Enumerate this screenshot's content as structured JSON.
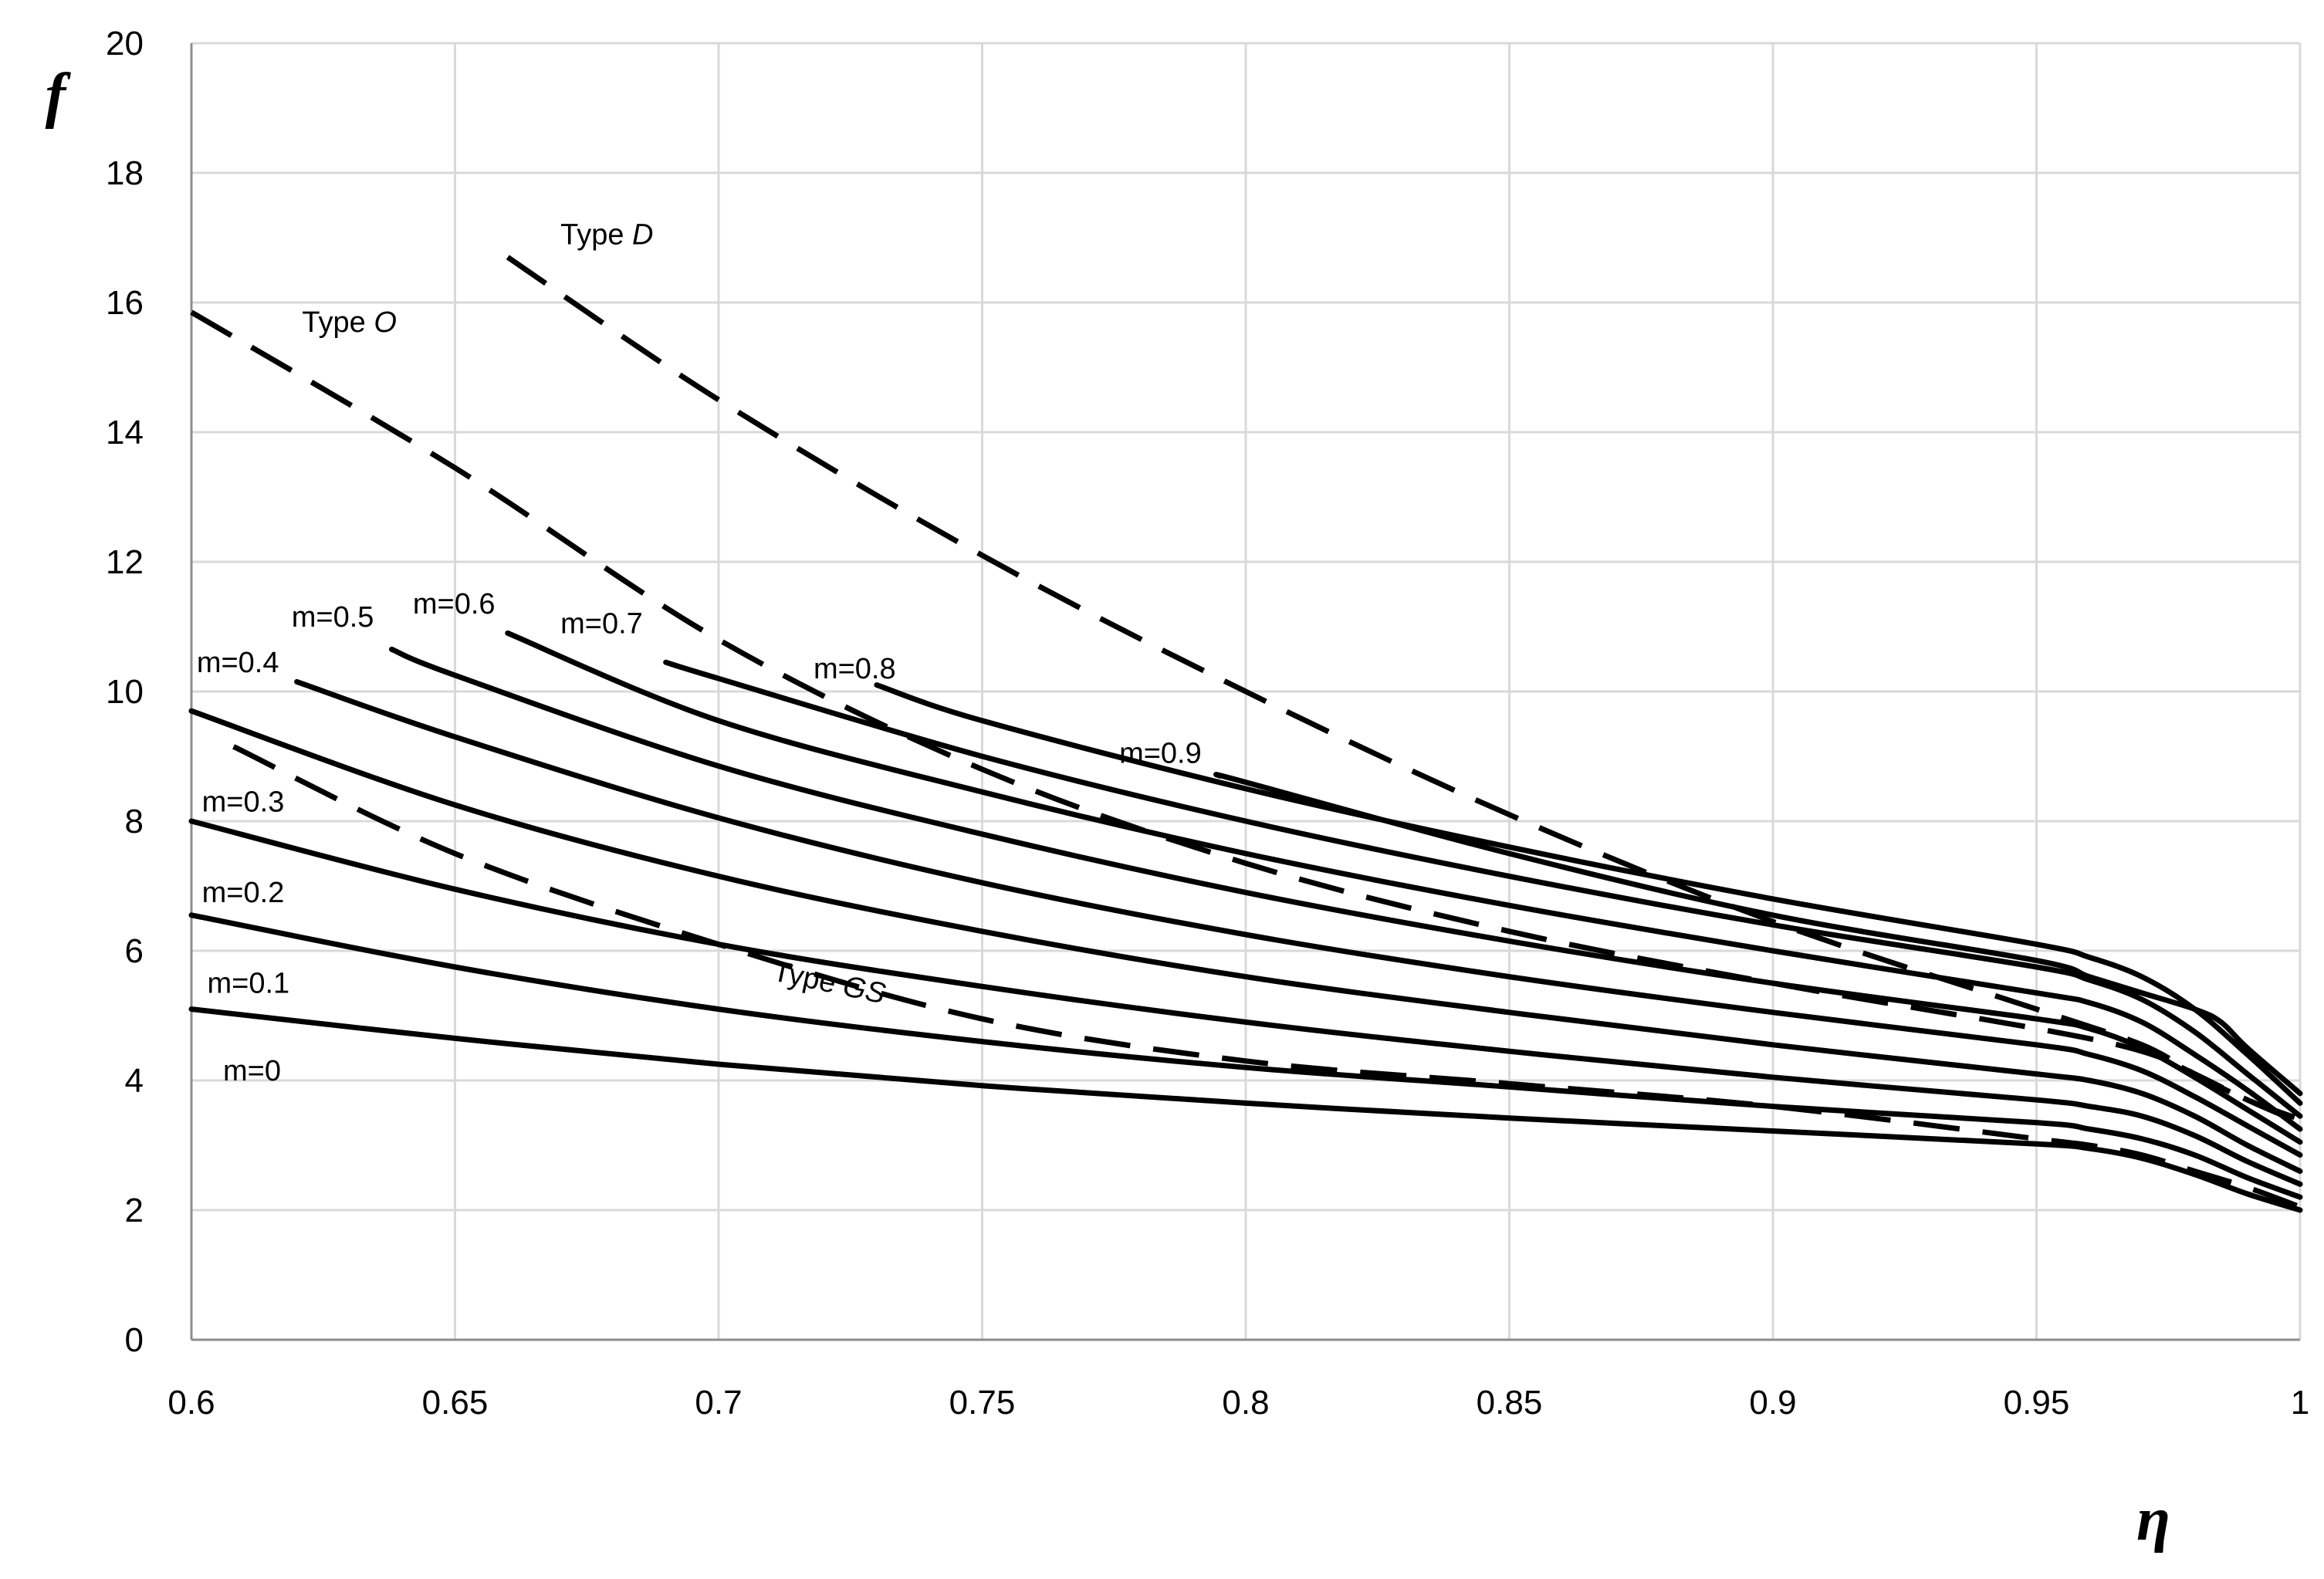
{
  "chart_data": {
    "type": "line",
    "xlabel": "η",
    "ylabel": "f",
    "xlim": [
      0.6,
      1.0
    ],
    "ylim": [
      0,
      20
    ],
    "xticks": [
      0.6,
      0.65,
      0.7,
      0.75,
      0.8,
      0.85,
      0.9,
      0.95,
      1.0
    ],
    "xtick_labels": [
      "0.6",
      "0.65",
      "0.7",
      "0.75",
      "0.8",
      "0.85",
      "0.9",
      "0.95",
      "1"
    ],
    "yticks": [
      0,
      2,
      4,
      6,
      8,
      10,
      12,
      14,
      16,
      18,
      20
    ],
    "ytick_labels": [
      "0",
      "2",
      "4",
      "6",
      "8",
      "10",
      "12",
      "14",
      "16",
      "18",
      "20"
    ],
    "grid": true,
    "series": [
      {
        "name": "m=0",
        "style": "solid",
        "label_pos": [
          0.606,
          4.0
        ],
        "x": [
          0.6,
          0.65,
          0.7,
          0.75,
          0.8,
          0.85,
          0.9,
          0.95,
          0.96,
          0.97,
          0.98,
          0.99,
          1.0
        ],
        "y": [
          5.1,
          4.65,
          4.25,
          3.92,
          3.65,
          3.42,
          3.22,
          3.02,
          2.95,
          2.8,
          2.55,
          2.25,
          2.0
        ]
      },
      {
        "name": "m=0.1",
        "style": "solid",
        "label_pos": [
          0.603,
          5.35
        ],
        "x": [
          0.6,
          0.65,
          0.7,
          0.75,
          0.8,
          0.85,
          0.9,
          0.95,
          0.96,
          0.97,
          0.98,
          0.99,
          1.0
        ],
        "y": [
          6.55,
          5.75,
          5.1,
          4.6,
          4.2,
          3.9,
          3.6,
          3.35,
          3.25,
          3.1,
          2.85,
          2.5,
          2.2
        ]
      },
      {
        "name": "m=0.2",
        "style": "solid",
        "label_pos": [
          0.602,
          6.75
        ],
        "x": [
          0.6,
          0.65,
          0.7,
          0.75,
          0.8,
          0.85,
          0.9,
          0.95,
          0.96,
          0.97,
          0.98,
          0.99,
          1.0
        ],
        "y": [
          8.0,
          6.95,
          6.1,
          5.45,
          4.9,
          4.45,
          4.05,
          3.7,
          3.6,
          3.45,
          3.15,
          2.75,
          2.4
        ]
      },
      {
        "name": "m=0.3",
        "style": "solid",
        "label_pos": [
          0.602,
          8.15
        ],
        "x": [
          0.6,
          0.65,
          0.7,
          0.75,
          0.8,
          0.85,
          0.9,
          0.95,
          0.96,
          0.97,
          0.98,
          0.99,
          1.0
        ],
        "y": [
          9.7,
          8.25,
          7.15,
          6.3,
          5.6,
          5.05,
          4.55,
          4.1,
          4.0,
          3.8,
          3.45,
          3.0,
          2.6
        ]
      },
      {
        "name": "m=0.4",
        "style": "solid",
        "label_pos": [
          0.601,
          10.3
        ],
        "x": [
          0.62,
          0.65,
          0.7,
          0.75,
          0.8,
          0.85,
          0.9,
          0.95,
          0.96,
          0.97,
          0.98,
          0.99,
          1.0
        ],
        "y": [
          10.15,
          9.3,
          8.05,
          7.05,
          6.25,
          5.6,
          5.05,
          4.55,
          4.4,
          4.15,
          3.75,
          3.3,
          2.85
        ]
      },
      {
        "name": "m=0.5",
        "style": "solid",
        "label_pos": [
          0.619,
          11.0
        ],
        "x": [
          0.638,
          0.65,
          0.7,
          0.75,
          0.8,
          0.85,
          0.9,
          0.95,
          0.96,
          0.97,
          0.98,
          0.99,
          1.0
        ],
        "y": [
          10.65,
          10.25,
          8.85,
          7.8,
          6.9,
          6.15,
          5.5,
          4.95,
          4.8,
          4.5,
          4.05,
          3.55,
          3.05
        ]
      },
      {
        "name": "m=0.6",
        "style": "solid",
        "label_pos": [
          0.642,
          11.2
        ],
        "x": [
          0.66,
          0.7,
          0.75,
          0.8,
          0.85,
          0.9,
          0.95,
          0.96,
          0.97,
          0.98,
          0.99,
          1.0
        ],
        "y": [
          10.9,
          9.55,
          8.45,
          7.5,
          6.7,
          6.0,
          5.35,
          5.2,
          4.9,
          4.4,
          3.85,
          3.25
        ]
      },
      {
        "name": "m=0.7",
        "style": "solid",
        "label_pos": [
          0.67,
          10.9
        ],
        "x": [
          0.69,
          0.7,
          0.75,
          0.8,
          0.85,
          0.9,
          0.95,
          0.96,
          0.97,
          0.98,
          0.99,
          1.0
        ],
        "y": [
          10.45,
          10.2,
          9.0,
          8.0,
          7.15,
          6.4,
          5.75,
          5.55,
          5.25,
          4.75,
          4.1,
          3.45
        ]
      },
      {
        "name": "m=0.8",
        "style": "solid",
        "label_pos": [
          0.718,
          10.2
        ],
        "x": [
          0.73,
          0.75,
          0.8,
          0.85,
          0.9,
          0.95,
          0.96,
          0.97,
          0.98,
          0.99,
          1.0
        ],
        "y": [
          10.1,
          9.55,
          8.5,
          7.6,
          6.8,
          6.1,
          5.9,
          5.6,
          5.1,
          4.4,
          3.65
        ]
      },
      {
        "name": "m=0.9",
        "style": "solid",
        "label_pos": [
          0.776,
          8.9
        ],
        "x": [
          0.795,
          0.8,
          0.85,
          0.9,
          0.95,
          0.96,
          0.97,
          0.98,
          0.985,
          0.99,
          1.0
        ],
        "y": [
          8.7,
          8.6,
          7.5,
          6.55,
          5.85,
          5.6,
          5.35,
          5.1,
          4.9,
          4.5,
          3.8
        ]
      },
      {
        "name": "Type D",
        "style": "dashed",
        "label_pos": [
          0.67,
          16.9
        ],
        "x": [
          0.66,
          0.7,
          0.75,
          0.8,
          0.85,
          0.9,
          0.95,
          0.97,
          0.98,
          0.99,
          1.0
        ],
        "y": [
          16.7,
          14.5,
          12.1,
          10.0,
          8.1,
          6.45,
          5.1,
          4.55,
          4.1,
          3.7,
          3.4
        ]
      },
      {
        "name": "Type O",
        "style": "dashed",
        "label_pos": [
          0.621,
          15.55
        ],
        "x": [
          0.6,
          0.65,
          0.7,
          0.75,
          0.8,
          0.85,
          0.9,
          0.95,
          0.97,
          0.98,
          0.99,
          1.0
        ],
        "y": [
          15.85,
          13.45,
          10.8,
          8.8,
          7.35,
          6.3,
          5.5,
          4.8,
          4.45,
          4.1,
          3.7,
          3.35
        ]
      },
      {
        "name": "Type GS",
        "style": "dashed",
        "label_pos": [
          0.71,
          5.55
        ],
        "x": [
          0.608,
          0.65,
          0.7,
          0.75,
          0.8,
          0.85,
          0.9,
          0.95,
          0.96,
          0.97,
          0.98,
          0.99,
          1.0
        ],
        "y": [
          9.15,
          7.5,
          6.1,
          4.95,
          4.3,
          3.95,
          3.6,
          3.1,
          3.0,
          2.85,
          2.6,
          2.35,
          2.05
        ]
      }
    ]
  }
}
